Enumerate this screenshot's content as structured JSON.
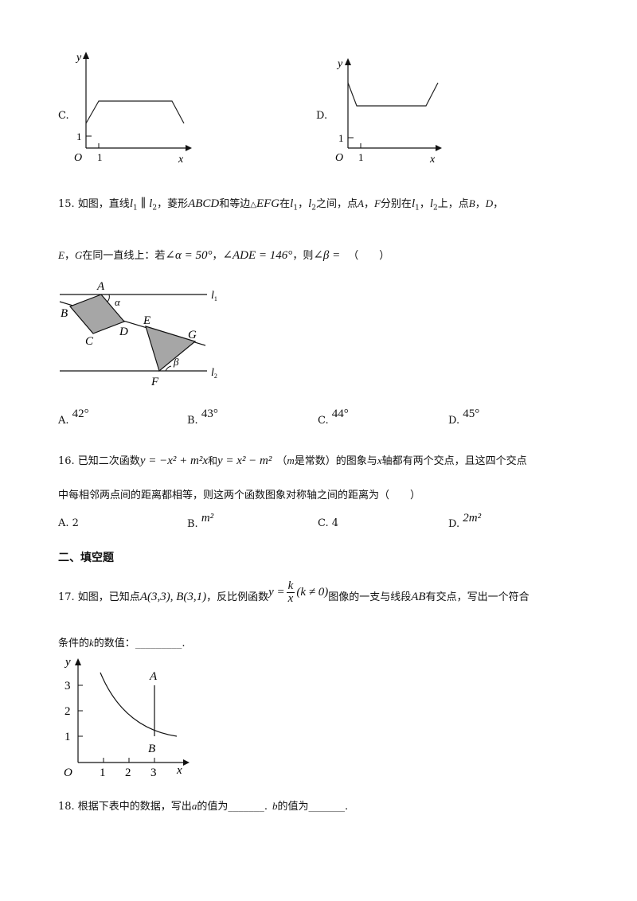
{
  "top_graphs": {
    "c": {
      "label": "C.",
      "y": "y",
      "x": "x",
      "o": "O",
      "one_x": "1",
      "one_y": "1"
    },
    "d": {
      "label": "D.",
      "y": "y",
      "x": "x",
      "o": "O",
      "one_x": "1",
      "one_y": "1"
    }
  },
  "q15": {
    "num": "15. 如图，直线",
    "l1": "l",
    "l1_sub": "1",
    "parallel": " ∥ ",
    "l2": "l",
    "l2_sub": "2",
    "t1": "，菱形",
    "abcd": "ABCD",
    "t2": "和等边",
    "tri": "△",
    "efg": "EFG",
    "t3": "在",
    "t4": "，",
    "t5": "之间，点",
    "pa": "A",
    "t6": "，",
    "pf": "F",
    "t7": "分别在",
    "t8": "，",
    "t9": "上，点",
    "pb": "B",
    "t10": "，",
    "pd": "D",
    "t11": "，",
    "line2_e": "E",
    "line2_t1": "，",
    "line2_g": "G",
    "line2_t2": "在同一直线上：若",
    "alpha_eq": "∠α = 50°",
    "line2_t3": "，",
    "ade_eq": "∠ADE = 146°",
    "line2_t4": "，则",
    "beta_eq": "∠β =",
    "paren": "（　　）",
    "figure": {
      "A": "A",
      "B": "B",
      "C": "C",
      "D": "D",
      "E": "E",
      "F": "F",
      "G": "G",
      "alpha": "α",
      "beta": "β",
      "l1": "l",
      "l1_sub": "1",
      "l2": "l",
      "l2_sub": "2"
    },
    "options": [
      {
        "label": "A.",
        "value": "42°"
      },
      {
        "label": "B.",
        "value": "43°"
      },
      {
        "label": "C.",
        "value": "44°"
      },
      {
        "label": "D.",
        "value": "45°"
      }
    ]
  },
  "q16": {
    "num": "16. 已知二次函数",
    "f1": "y = −x² + m²x",
    "and": "和",
    "f2": "y = x² − m²",
    "t1": "（",
    "m": "m",
    "t2": "是常数）的图象与",
    "x": "x",
    "t3": "轴都有两个交点，且这四个交点",
    "line2": "中每相邻两点间的距离都相等，则这两个函数图象对称轴之间的距离为（　　）",
    "options": [
      {
        "label": "A.",
        "value": "2"
      },
      {
        "label": "B.",
        "value": "m²"
      },
      {
        "label": "C.",
        "value": "4"
      },
      {
        "label": "D.",
        "value": "2m²"
      }
    ]
  },
  "section2": {
    "title": "二、填空题"
  },
  "q17": {
    "num": "17. 如图，已知点",
    "points": "A(3,3), B(3,1)",
    "t1": "，反比例函数",
    "func_y": "y =",
    "func_k": "k",
    "func_x": "x",
    "func_cond": "(k ≠ 0)",
    "t2": "图像的一支与线段",
    "ab": "AB",
    "t3": "有交点，写出一个符合",
    "line2_a": "条件的",
    "k": "k",
    "line2_b": "的数值：",
    "blank": "_________",
    "end": ".",
    "figure": {
      "y": "y",
      "x": "x",
      "o": "O",
      "A": "A",
      "B": "B",
      "xt": [
        "1",
        "2",
        "3"
      ],
      "yt": [
        "1",
        "2",
        "3"
      ]
    }
  },
  "q18": {
    "num": "18. 根据下表中的数据，写出",
    "a": "a",
    "t1": "的值为",
    "blank1": "_______",
    "t2": ".",
    "b": "b",
    "t3": "的值为",
    "blank2": "_______",
    "t4": "."
  }
}
